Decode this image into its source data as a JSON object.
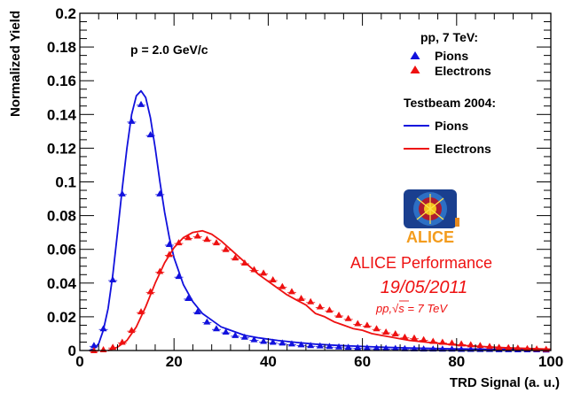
{
  "chart_data": {
    "type": "scatter",
    "xlabel": "TRD Signal (a. u.)",
    "ylabel": "Normalized Yield",
    "xlim": [
      0,
      100
    ],
    "ylim": [
      0,
      0.2
    ],
    "x_ticks": [
      0,
      20,
      40,
      60,
      80,
      100
    ],
    "y_ticks": [
      0,
      0.02,
      0.04,
      0.06,
      0.08,
      0.1,
      0.12,
      0.14,
      0.16,
      0.18,
      0.2
    ],
    "y_tick_labels": [
      "0",
      "0.02",
      "0.04",
      "0.06",
      "0.08",
      "0.1",
      "0.12",
      "0.14",
      "0.16",
      "0.18",
      "0.2"
    ],
    "grid": false,
    "momentum_label": "p = 2.0 GeV/c",
    "legend": {
      "position": "top-right",
      "group1_title": "pp, 7 TeV:",
      "group2_title": "Testbeam 2004:"
    },
    "series": [
      {
        "name": "Pions",
        "kind": "markers",
        "color": "#1111dd",
        "x": [
          3,
          5,
          7,
          9,
          11,
          13,
          15,
          17,
          19,
          21,
          23,
          25,
          27,
          29,
          31,
          33,
          35,
          37,
          39,
          41,
          43,
          45,
          47,
          49,
          51,
          53,
          55,
          57,
          59,
          61,
          63,
          65,
          67,
          69,
          71,
          73,
          75,
          77,
          79,
          81,
          83,
          85,
          87,
          89,
          91,
          93,
          95,
          97,
          99
        ],
        "y": [
          0.003,
          0.013,
          0.042,
          0.093,
          0.136,
          0.146,
          0.128,
          0.093,
          0.063,
          0.044,
          0.031,
          0.023,
          0.017,
          0.013,
          0.011,
          0.009,
          0.008,
          0.0065,
          0.0055,
          0.005,
          0.0045,
          0.004,
          0.0035,
          0.003,
          0.0028,
          0.0025,
          0.0022,
          0.002,
          0.0018,
          0.0016,
          0.0015,
          0.0014,
          0.0013,
          0.0012,
          0.0011,
          0.001,
          0.001,
          0.0009,
          0.0009,
          0.0008,
          0.0008,
          0.0007,
          0.0007,
          0.0006,
          0.0006,
          0.0005,
          0.0005,
          0.0005,
          0.0004
        ]
      },
      {
        "name": "Electrons",
        "kind": "markers",
        "color": "#ee1111",
        "x": [
          3,
          5,
          7,
          9,
          11,
          13,
          15,
          17,
          19,
          21,
          23,
          25,
          27,
          29,
          31,
          33,
          35,
          37,
          39,
          41,
          43,
          45,
          47,
          49,
          51,
          53,
          55,
          57,
          59,
          61,
          63,
          65,
          67,
          69,
          71,
          73,
          75,
          77,
          79,
          81,
          83,
          85,
          87,
          89,
          91,
          93,
          95,
          97,
          99
        ],
        "y": [
          0.0,
          0.0005,
          0.002,
          0.005,
          0.012,
          0.023,
          0.035,
          0.047,
          0.057,
          0.064,
          0.067,
          0.068,
          0.066,
          0.064,
          0.06,
          0.055,
          0.052,
          0.048,
          0.046,
          0.042,
          0.038,
          0.035,
          0.031,
          0.029,
          0.026,
          0.024,
          0.021,
          0.019,
          0.016,
          0.015,
          0.013,
          0.011,
          0.01,
          0.008,
          0.0075,
          0.0065,
          0.0055,
          0.005,
          0.0045,
          0.004,
          0.0035,
          0.003,
          0.0025,
          0.002,
          0.0018,
          0.0015,
          0.0012,
          0.001,
          0.0008
        ]
      },
      {
        "name": "Pions",
        "kind": "line",
        "color": "#1111dd",
        "x": [
          2,
          3,
          4,
          5,
          6,
          7,
          8,
          9,
          10,
          11,
          12,
          13,
          14,
          15,
          16,
          17,
          18,
          19,
          20,
          22,
          24,
          26,
          28,
          30,
          32,
          35,
          38,
          42,
          46,
          50,
          55,
          60,
          65,
          70,
          75,
          80,
          85,
          90,
          95,
          100
        ],
        "y": [
          0.0,
          0.001,
          0.004,
          0.012,
          0.025,
          0.045,
          0.07,
          0.096,
          0.12,
          0.14,
          0.151,
          0.154,
          0.15,
          0.138,
          0.12,
          0.1,
          0.082,
          0.067,
          0.055,
          0.039,
          0.029,
          0.022,
          0.018,
          0.014,
          0.012,
          0.009,
          0.0075,
          0.006,
          0.0048,
          0.0038,
          0.003,
          0.0024,
          0.0019,
          0.0015,
          0.0012,
          0.001,
          0.0008,
          0.0007,
          0.0005,
          0.0004
        ]
      },
      {
        "name": "Electrons",
        "kind": "line",
        "color": "#ee1111",
        "x": [
          6,
          8,
          10,
          12,
          14,
          16,
          18,
          20,
          22,
          24,
          26,
          28,
          30,
          32,
          34,
          36,
          38,
          40,
          42,
          44,
          46,
          48,
          50,
          52,
          54,
          56,
          58,
          60,
          62,
          64,
          66,
          68,
          70,
          75,
          80,
          85,
          90,
          95,
          100
        ],
        "y": [
          0.0,
          0.002,
          0.006,
          0.014,
          0.026,
          0.04,
          0.052,
          0.061,
          0.067,
          0.07,
          0.071,
          0.069,
          0.065,
          0.06,
          0.055,
          0.05,
          0.045,
          0.041,
          0.037,
          0.033,
          0.03,
          0.027,
          0.022,
          0.02,
          0.017,
          0.015,
          0.013,
          0.012,
          0.01,
          0.009,
          0.008,
          0.007,
          0.006,
          0.0045,
          0.0032,
          0.0024,
          0.0017,
          0.0012,
          0.0008
        ]
      }
    ]
  },
  "branding": {
    "logo_text": "ALICE",
    "performance_label": "ALICE Performance",
    "date": "19/05/2011",
    "energy_prefix": "pp,",
    "energy_sqrt": "√s",
    "energy_suffix": " = 7 TeV"
  }
}
